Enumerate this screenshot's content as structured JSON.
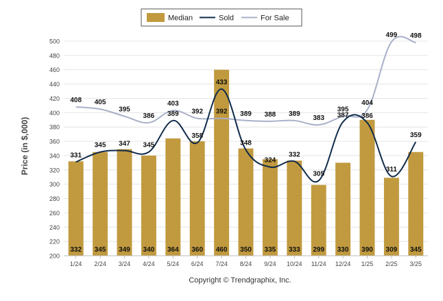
{
  "chart_data": {
    "type": "bar",
    "title": "",
    "xlabel": "",
    "ylabel": "Price (in $,000)",
    "ylim": [
      200,
      500
    ],
    "ytick_step": 20,
    "grid": true,
    "legend_position": "top-center",
    "categories": [
      "1/24",
      "2/24",
      "3/24",
      "4/24",
      "5/24",
      "6/24",
      "7/24",
      "8/24",
      "9/24",
      "10/24",
      "11/24",
      "12/24",
      "1/25",
      "2/25",
      "3/25"
    ],
    "series": [
      {
        "name": "Median",
        "kind": "bar",
        "color": "#c19a3f",
        "values": [
          332,
          345,
          349,
          340,
          364,
          360,
          460,
          350,
          335,
          333,
          299,
          330,
          390,
          309,
          345
        ]
      },
      {
        "name": "Sold",
        "kind": "line",
        "color": "#0f2a4a",
        "values": [
          331,
          345,
          347,
          345,
          389,
          358,
          433,
          348,
          324,
          332,
          305,
          387,
          386,
          311,
          359
        ]
      },
      {
        "name": "For Sale",
        "kind": "line",
        "color": "#a8b0c8",
        "values": [
          408,
          405,
          395,
          386,
          403,
          392,
          392,
          389,
          388,
          389,
          383,
          395,
          404,
          499,
          498
        ]
      }
    ],
    "footer": "Copyright © Trendgraphix, Inc."
  }
}
